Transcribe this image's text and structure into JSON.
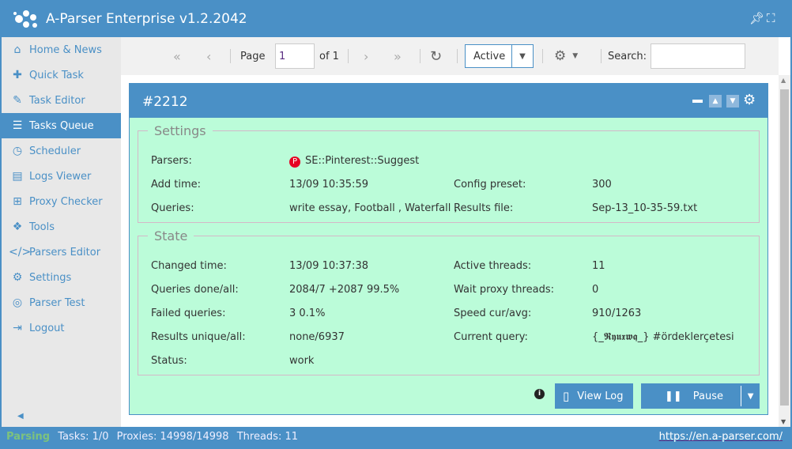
{
  "app": {
    "title": "A-Parser Enterprise v1.2.2042"
  },
  "sidebar": {
    "items": [
      {
        "label": "Home & News",
        "icon": "home-icon",
        "g": "⌂"
      },
      {
        "label": "Quick Task",
        "icon": "puzzle-icon",
        "g": "✚"
      },
      {
        "label": "Task Editor",
        "icon": "pencil-icon",
        "g": "✎"
      },
      {
        "label": "Tasks Queue",
        "icon": "list-icon",
        "g": "☰",
        "active": true
      },
      {
        "label": "Scheduler",
        "icon": "clock-icon",
        "g": "◷"
      },
      {
        "label": "Logs Viewer",
        "icon": "file-icon",
        "g": "▤"
      },
      {
        "label": "Proxy Checker",
        "icon": "sitemap-icon",
        "g": "⊞"
      },
      {
        "label": "Tools",
        "icon": "cubes-icon",
        "g": "❖"
      },
      {
        "label": "Parsers Editor",
        "icon": "code-icon",
        "g": "</>"
      },
      {
        "label": "Settings",
        "icon": "gears-icon",
        "g": "⚙"
      },
      {
        "label": "Parser Test",
        "icon": "target-icon",
        "g": "◎"
      },
      {
        "label": "Logout",
        "icon": "sign-out-icon",
        "g": "⇥"
      }
    ]
  },
  "toolbar": {
    "page_label": "Page",
    "page_value": "1",
    "of_label": "of 1",
    "filter_value": "Active",
    "search_label": "Search:",
    "search_value": ""
  },
  "task": {
    "id": "#2212",
    "settings_legend": "Settings",
    "settings": {
      "parsers_label": "Parsers:",
      "parsers_value": "SE::Pinterest::Suggest",
      "add_time_label": "Add time:",
      "add_time_value": "13/09 10:35:59",
      "config_label": "Config preset:",
      "config_value": "300",
      "queries_label": "Queries:",
      "queries_value": "write essay, Football , Waterfall ,",
      "results_label": "Results file:",
      "results_value": "Sep-13_10-35-59.txt"
    },
    "state_legend": "State",
    "state": {
      "changed_label": "Changed time:",
      "changed_value": "13/09 10:37:38",
      "active_label": "Active threads:",
      "active_value": "11",
      "done_label": "Queries done/all:",
      "done_value": "2084/7 +2087 99.5%",
      "wait_label": "Wait proxy threads:",
      "wait_value": "0",
      "failed_label": "Failed queries:",
      "failed_value": "3 0.1%",
      "speed_label": "Speed cur/avg:",
      "speed_value": "910/1263",
      "unique_label": "Results unique/all:",
      "unique_value": "none/6937",
      "current_label": "Current query:",
      "current_value": "{_𝕽𝖞𝖚𝖝𝖜𝖖_} #ördeklerçetesi",
      "status_label": "Status:",
      "status_value": "work"
    },
    "view_log": "View Log",
    "pause": "Pause"
  },
  "statusbar": {
    "state": "Parsing",
    "tasks": "Tasks: 1/0",
    "proxies": "Proxies: 14998/14998",
    "threads": "Threads: 11",
    "link": "https://en.a-parser.com/"
  },
  "colors": {
    "accent": "#4a90c6",
    "panel_bg": "#bbfcd9",
    "parsing": "#7dc27d",
    "pinterest": "#e60023"
  }
}
